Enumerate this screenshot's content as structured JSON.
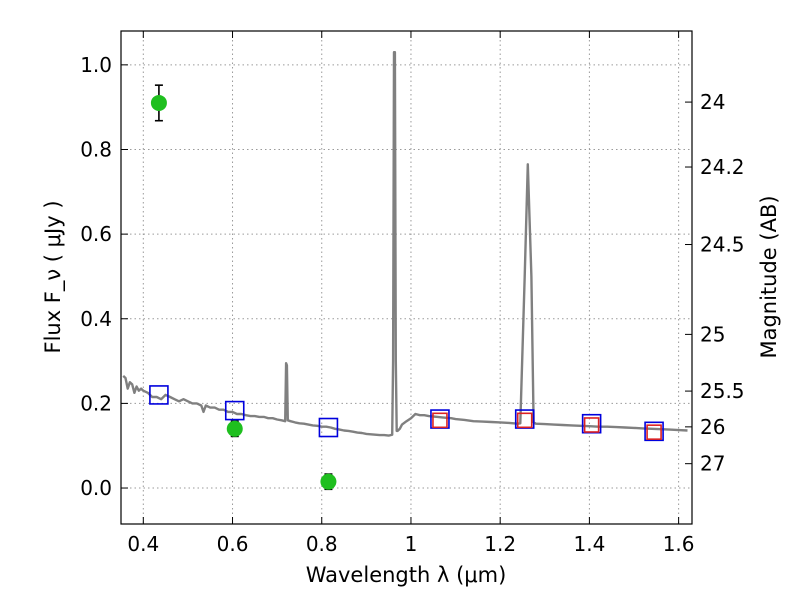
{
  "chart_data": {
    "type": "scatter",
    "xlabel": "Wavelength  λ (μm)",
    "ylabel": "Flux  F_ν  ( μJy )",
    "ylabel_right": "Magnitude (AB)",
    "xlim": [
      0.35,
      1.63
    ],
    "ylim": [
      -0.085,
      1.08
    ],
    "grid": true,
    "x_ticks": [
      0.4,
      0.6,
      0.8,
      1.0,
      1.2,
      1.4,
      1.6
    ],
    "x_tick_labels": [
      "0.4",
      "0.6",
      "0.8",
      "1",
      "1.2",
      "1.4",
      "1.6"
    ],
    "y_ticks": [
      0.0,
      0.2,
      0.4,
      0.6,
      0.8,
      1.0
    ],
    "y_tick_labels": [
      "0.0",
      "0.2",
      "0.4",
      "0.6",
      "0.8",
      "1.0"
    ],
    "right_ticks": [
      {
        "label": "24",
        "mag": 24
      },
      {
        "label": "24.2",
        "mag": 24.2
      },
      {
        "label": "24.5",
        "mag": 24.5
      },
      {
        "label": "25",
        "mag": 25
      },
      {
        "label": "25.5",
        "mag": 25.5
      },
      {
        "label": "26",
        "mag": 26
      },
      {
        "label": "27",
        "mag": 27
      }
    ],
    "colors": {
      "spectrum": "#808080",
      "observed": "#1fbf1f",
      "model_blue": "#0000dd",
      "model_red": "#dd2222",
      "grid": "#9a9a9a"
    },
    "series": [
      {
        "kind": "line",
        "x": [
          0.355,
          0.36,
          0.365,
          0.37,
          0.375,
          0.38,
          0.385,
          0.39,
          0.395,
          0.4,
          0.41,
          0.42,
          0.43,
          0.44,
          0.45,
          0.46,
          0.47,
          0.48,
          0.49,
          0.5,
          0.51,
          0.52,
          0.53,
          0.535,
          0.54,
          0.55,
          0.56,
          0.57,
          0.58,
          0.59,
          0.6,
          0.61,
          0.62,
          0.63,
          0.64,
          0.65,
          0.66,
          0.67,
          0.68,
          0.69,
          0.7,
          0.71,
          0.718,
          0.72,
          0.722,
          0.724,
          0.73,
          0.74,
          0.75,
          0.76,
          0.77,
          0.78,
          0.79,
          0.8,
          0.81,
          0.82,
          0.83,
          0.84,
          0.85,
          0.86,
          0.87,
          0.88,
          0.89,
          0.9,
          0.91,
          0.92,
          0.93,
          0.94,
          0.95,
          0.958,
          0.96,
          0.962,
          0.964,
          0.966,
          0.968,
          0.97,
          0.975,
          0.98,
          0.99,
          1.0,
          1.01,
          1.02,
          1.03,
          1.04,
          1.05,
          1.06,
          1.07,
          1.08,
          1.09,
          1.1,
          1.12,
          1.14,
          1.16,
          1.18,
          1.2,
          1.22,
          1.24,
          1.245,
          1.255,
          1.262,
          1.27,
          1.275,
          1.28,
          1.3,
          1.32,
          1.34,
          1.36,
          1.38,
          1.4,
          1.42,
          1.44,
          1.46,
          1.48,
          1.5,
          1.52,
          1.54,
          1.56,
          1.58,
          1.6,
          1.62
        ],
        "y": [
          0.265,
          0.26,
          0.235,
          0.25,
          0.245,
          0.225,
          0.24,
          0.23,
          0.235,
          0.23,
          0.225,
          0.215,
          0.215,
          0.21,
          0.22,
          0.215,
          0.21,
          0.205,
          0.21,
          0.205,
          0.2,
          0.2,
          0.195,
          0.18,
          0.195,
          0.19,
          0.19,
          0.185,
          0.185,
          0.18,
          0.18,
          0.175,
          0.175,
          0.172,
          0.17,
          0.17,
          0.168,
          0.168,
          0.165,
          0.165,
          0.162,
          0.16,
          0.158,
          0.295,
          0.29,
          0.16,
          0.158,
          0.155,
          0.153,
          0.152,
          0.15,
          0.148,
          0.147,
          0.145,
          0.145,
          0.143,
          0.14,
          0.138,
          0.136,
          0.135,
          0.133,
          0.131,
          0.13,
          0.128,
          0.127,
          0.126,
          0.125,
          0.125,
          0.124,
          0.126,
          0.3,
          1.03,
          1.03,
          0.3,
          0.135,
          0.135,
          0.14,
          0.15,
          0.158,
          0.165,
          0.175,
          0.172,
          0.172,
          0.17,
          0.169,
          0.168,
          0.167,
          0.166,
          0.165,
          0.163,
          0.161,
          0.158,
          0.157,
          0.156,
          0.155,
          0.154,
          0.152,
          0.153,
          0.5,
          0.765,
          0.5,
          0.155,
          0.152,
          0.151,
          0.15,
          0.149,
          0.148,
          0.147,
          0.146,
          0.145,
          0.145,
          0.144,
          0.143,
          0.142,
          0.141,
          0.14,
          0.139,
          0.138,
          0.137,
          0.136
        ]
      },
      {
        "kind": "errorbar",
        "x": [
          0.435,
          0.605,
          0.815
        ],
        "y": [
          0.91,
          0.14,
          0.015
        ],
        "yerr": [
          0.042,
          0.018,
          0.018
        ]
      },
      {
        "kind": "scatter",
        "marker": "blue-square",
        "x": [
          0.435,
          0.605,
          0.815,
          1.065,
          1.255,
          1.405,
          1.545
        ],
        "y": [
          0.22,
          0.183,
          0.143,
          0.163,
          0.163,
          0.152,
          0.134
        ]
      },
      {
        "kind": "scatter",
        "marker": "red-square",
        "x": [
          1.065,
          1.255,
          1.405,
          1.545
        ],
        "y": [
          0.16,
          0.16,
          0.149,
          0.132
        ]
      }
    ]
  }
}
